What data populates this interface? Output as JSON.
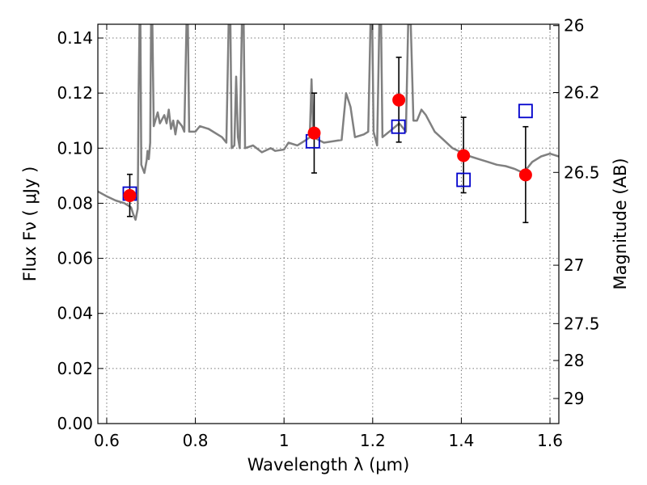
{
  "chart_data": {
    "type": "scatter",
    "xlabel": "Wavelength  λ (μm)",
    "ylabel": "Flux  Fν  ( μJy )",
    "ylabel_right": "Magnitude (AB)",
    "xlim": [
      0.58,
      1.62
    ],
    "ylim": [
      0.0,
      0.145
    ],
    "grid": true,
    "x_ticks": [
      0.6,
      0.8,
      1.0,
      1.2,
      1.4,
      1.6
    ],
    "x_tick_labels": [
      "0.6",
      "0.8",
      "1",
      "1.2",
      "1.4",
      "1.6"
    ],
    "y_ticks": [
      0.0,
      0.02,
      0.04,
      0.06,
      0.08,
      0.1,
      0.12,
      0.14
    ],
    "y_tick_labels": [
      "0.00",
      "0.02",
      "0.04",
      "0.06",
      "0.08",
      "0.10",
      "0.12",
      "0.14"
    ],
    "right_ticks": [
      {
        "label": "26",
        "flux": 0.1445
      },
      {
        "label": "26.2",
        "flux": 0.1202
      },
      {
        "label": "26.5",
        "flux": 0.0912
      },
      {
        "label": "27",
        "flux": 0.0575
      },
      {
        "label": "27.5",
        "flux": 0.0363
      },
      {
        "label": "28",
        "flux": 0.0229
      },
      {
        "label": "29",
        "flux": 0.0091
      }
    ],
    "colors": {
      "model": "#808080",
      "observed": "#ff0000",
      "model_photometry": "#0000cc",
      "errorbar": "#000000",
      "grid": "#777777"
    },
    "series": [
      {
        "kind": "line",
        "points": [
          [
            0.58,
            0.0843
          ],
          [
            0.6,
            0.0825
          ],
          [
            0.62,
            0.081
          ],
          [
            0.64,
            0.08
          ],
          [
            0.655,
            0.0785
          ],
          [
            0.66,
            0.076
          ],
          [
            0.665,
            0.074
          ],
          [
            0.67,
            0.078
          ],
          [
            0.672,
            0.12
          ],
          [
            0.674,
            0.145
          ],
          [
            0.676,
            0.145
          ],
          [
            0.678,
            0.094
          ],
          [
            0.685,
            0.091
          ],
          [
            0.69,
            0.0955
          ],
          [
            0.692,
            0.099
          ],
          [
            0.695,
            0.096
          ],
          [
            0.698,
            0.102
          ],
          [
            0.7,
            0.145
          ],
          [
            0.703,
            0.145
          ],
          [
            0.706,
            0.108
          ],
          [
            0.715,
            0.113
          ],
          [
            0.72,
            0.109
          ],
          [
            0.73,
            0.112
          ],
          [
            0.735,
            0.109
          ],
          [
            0.74,
            0.114
          ],
          [
            0.745,
            0.107
          ],
          [
            0.75,
            0.11
          ],
          [
            0.755,
            0.105
          ],
          [
            0.76,
            0.11
          ],
          [
            0.77,
            0.108
          ],
          [
            0.775,
            0.106
          ],
          [
            0.78,
            0.145
          ],
          [
            0.783,
            0.145
          ],
          [
            0.786,
            0.106
          ],
          [
            0.8,
            0.106
          ],
          [
            0.81,
            0.108
          ],
          [
            0.83,
            0.107
          ],
          [
            0.86,
            0.104
          ],
          [
            0.87,
            0.102
          ],
          [
            0.875,
            0.145
          ],
          [
            0.879,
            0.145
          ],
          [
            0.882,
            0.1
          ],
          [
            0.888,
            0.101
          ],
          [
            0.892,
            0.126
          ],
          [
            0.896,
            0.104
          ],
          [
            0.9,
            0.1
          ],
          [
            0.905,
            0.145
          ],
          [
            0.909,
            0.145
          ],
          [
            0.912,
            0.1
          ],
          [
            0.93,
            0.101
          ],
          [
            0.95,
            0.0985
          ],
          [
            0.97,
            0.1
          ],
          [
            0.98,
            0.099
          ],
          [
            1.0,
            0.0995
          ],
          [
            1.01,
            0.102
          ],
          [
            1.03,
            0.101
          ],
          [
            1.05,
            0.103
          ],
          [
            1.058,
            0.104
          ],
          [
            1.062,
            0.125
          ],
          [
            1.066,
            0.104
          ],
          [
            1.09,
            0.102
          ],
          [
            1.13,
            0.103
          ],
          [
            1.14,
            0.12
          ],
          [
            1.15,
            0.115
          ],
          [
            1.16,
            0.104
          ],
          [
            1.18,
            0.105
          ],
          [
            1.19,
            0.106
          ],
          [
            1.195,
            0.145
          ],
          [
            1.199,
            0.145
          ],
          [
            1.202,
            0.106
          ],
          [
            1.21,
            0.101
          ],
          [
            1.215,
            0.145
          ],
          [
            1.219,
            0.145
          ],
          [
            1.222,
            0.104
          ],
          [
            1.245,
            0.107
          ],
          [
            1.26,
            0.109
          ],
          [
            1.275,
            0.106
          ],
          [
            1.28,
            0.145
          ],
          [
            1.286,
            0.145
          ],
          [
            1.292,
            0.11
          ],
          [
            1.3,
            0.11
          ],
          [
            1.31,
            0.114
          ],
          [
            1.32,
            0.112
          ],
          [
            1.34,
            0.106
          ],
          [
            1.36,
            0.103
          ],
          [
            1.38,
            0.1
          ],
          [
            1.4,
            0.0985
          ],
          [
            1.42,
            0.097
          ],
          [
            1.44,
            0.096
          ],
          [
            1.46,
            0.095
          ],
          [
            1.48,
            0.094
          ],
          [
            1.5,
            0.0935
          ],
          [
            1.52,
            0.0925
          ],
          [
            1.54,
            0.091
          ],
          [
            1.56,
            0.095
          ],
          [
            1.58,
            0.097
          ],
          [
            1.6,
            0.098
          ],
          [
            1.61,
            0.0975
          ],
          [
            1.62,
            0.097
          ]
        ]
      },
      {
        "kind": "markers",
        "marker": "circle",
        "points": [
          {
            "x": 0.652,
            "y": 0.0828,
            "yerr_low": 0.0752,
            "yerr_high": 0.0905
          },
          {
            "x": 1.068,
            "y": 0.1055,
            "yerr_low": 0.091,
            "yerr_high": 0.12
          },
          {
            "x": 1.259,
            "y": 0.1175,
            "yerr_low": 0.1022,
            "yerr_high": 0.133
          },
          {
            "x": 1.405,
            "y": 0.0973,
            "yerr_low": 0.0838,
            "yerr_high": 0.1112
          },
          {
            "x": 1.545,
            "y": 0.0903,
            "yerr_low": 0.073,
            "yerr_high": 0.1078
          }
        ]
      },
      {
        "kind": "markers",
        "marker": "square",
        "points": [
          {
            "x": 0.652,
            "y": 0.0835
          },
          {
            "x": 1.065,
            "y": 0.1025
          },
          {
            "x": 1.258,
            "y": 0.1078
          },
          {
            "x": 1.405,
            "y": 0.0885
          },
          {
            "x": 1.545,
            "y": 0.1135
          }
        ]
      }
    ]
  }
}
